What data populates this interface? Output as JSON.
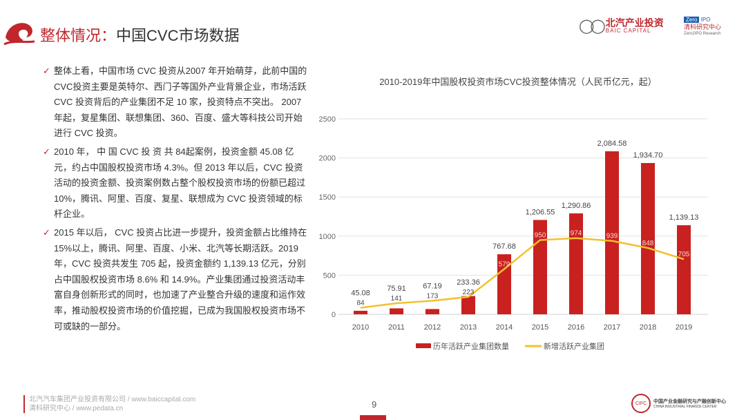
{
  "header": {
    "title_prefix": "整体情况：",
    "title_main": "中国CVC市场数据",
    "logo_baic_cn": "北汽产业投资",
    "logo_baic_en": "BAIC CAPITAL",
    "logo_zero_a": "Zero",
    "logo_zero_b": "IPO",
    "logo_zero_cn": "清科研究中心",
    "logo_zero_en": "Zero2IPO Research"
  },
  "body": {
    "check": "✓",
    "paragraphs": [
      "整体上看，中国市场 CVC 投资从2007 年开始萌芽，此前中国的 CVC投资主要是英特尔、西门子等国外产业背景企业，市场活跃 CVC 投资背后的产业集团不足 10 家，投资特点不突出。 2007 年起，复星集团、联想集团、360、百度、盛大等科技公司开始进行 CVC 投资。",
      "2010 年， 中 国 CVC 投 资 共 84起案例，投资金额 45.08 亿元，约占中国股权投资市场 4.3%。但 2013 年以后，CVC 投资活动的投资金额、投资案例数占整个股权投资市场的份额已超过 10%，腾讯、阿里、百度、复星、联想成为 CVC 投资领域的标杆企业。",
      "2015 年以后， CVC 投资占比进一步提升，投资金额占比维持在 15%以上，腾讯、阿里、百度、小米、北汽等长期活跃。2019年，CVC 投资共发生 705 起，投资金额约 1,139.13 亿元，分别占中国股权投资市场 8.6% 和 14.9%。产业集团通过投资活动丰富自身创新形式的同时，也加速了产业整合升级的速度和运作效率，推动股权投资市场的价值挖掘，已成为我国股权投资市场不可或缺的一部分。"
    ]
  },
  "chart_data": {
    "type": "bar+line",
    "title": "2010-2019年中国股权投资市场CVC投资整体情况（人民币亿元，起）",
    "categories": [
      "2010",
      "2011",
      "2012",
      "2013",
      "2014",
      "2015",
      "2016",
      "2017",
      "2018",
      "2019"
    ],
    "ylim": [
      0,
      2500
    ],
    "yticks": [
      0,
      500,
      1000,
      1500,
      2000,
      2500
    ],
    "grid": true,
    "legend_position": "bottom",
    "series": [
      {
        "name": "历年活跃产业集团数量",
        "type": "bar",
        "color": "#c8211f",
        "values": [
          45.08,
          75.91,
          67.19,
          233.36,
          767.68,
          1206.55,
          1290.86,
          2084.58,
          1934.7,
          1139.13
        ],
        "labels": [
          "45.08",
          "75.91",
          "67.19",
          "233.36",
          "767.68",
          "1,206.55",
          "1,290.86",
          "2,084.58",
          "1,934.70",
          "1,139.13"
        ]
      },
      {
        "name": "新增活跃产业集团",
        "type": "line",
        "color": "#f2c12e",
        "values": [
          84,
          141,
          173,
          223,
          579,
          950,
          974,
          939,
          848,
          705
        ]
      }
    ]
  },
  "footer": {
    "line1": "北汽汽车集团产业投资有限公司 / www.baiccapital.com",
    "line2": "清科研究中心 / www.pedata.cn",
    "page": "9",
    "cifc_seal": "CIFC",
    "cifc_cn": "中国产业金融研究与产融创新中心",
    "cifc_en": "CHINA INDUSTRIAL FINANCE CENTER"
  }
}
